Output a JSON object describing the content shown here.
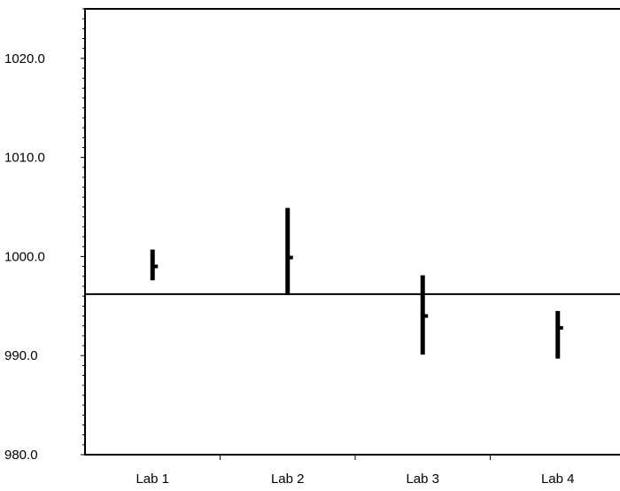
{
  "chart_data": {
    "type": "range",
    "title": "",
    "xlabel": "",
    "ylabel": "",
    "categories": [
      "Lab 1",
      "Lab 2",
      "Lab 3",
      "Lab 4"
    ],
    "series": [
      {
        "points": [
          {
            "value": 999.0,
            "low": 997.6,
            "high": 1000.7
          },
          {
            "value": 999.9,
            "low": 996.1,
            "high": 1004.9
          },
          {
            "value": 994.0,
            "low": 990.1,
            "high": 998.1
          },
          {
            "value": 992.8,
            "low": 989.7,
            "high": 994.5
          }
        ]
      }
    ],
    "reference_line": 996.2,
    "ylim": [
      980.0,
      1025.0
    ],
    "y_ticks": [
      "980.0",
      "990.0",
      "1000.0",
      "1010.0",
      "1020.0"
    ],
    "grid": false,
    "legend": "none",
    "colors": {
      "marks": "#000000",
      "axes": "#000000"
    }
  }
}
